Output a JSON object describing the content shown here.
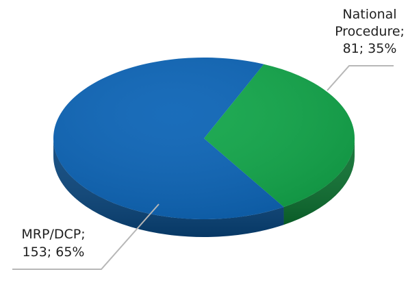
{
  "chart_data": {
    "type": "pie",
    "title": "",
    "style": "3d",
    "slices": [
      {
        "name": "National Procedure",
        "value": 81,
        "percent": 35,
        "label_lines": [
          "National",
          "Procedure;",
          "81; 35%"
        ],
        "color": "#12a64a",
        "side_color": "#0b6f2f"
      },
      {
        "name": "MRP/DCP",
        "value": 153,
        "percent": 65,
        "label_lines": [
          "MRP/DCP;",
          "153; 65%"
        ],
        "color": "#0c64b6",
        "side_color": "#08447b"
      }
    ],
    "leader_line_color": "#b7b7b7"
  }
}
